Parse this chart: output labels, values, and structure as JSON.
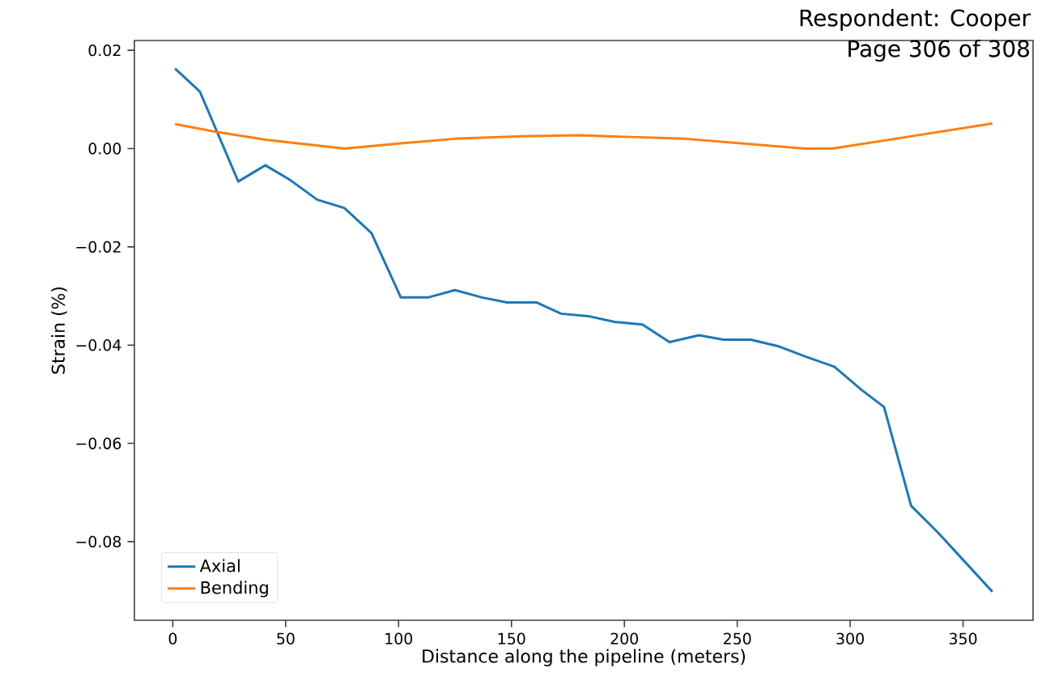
{
  "chart_data": {
    "type": "line",
    "xlabel": "Distance along the pipeline (meters)",
    "ylabel": "Strain (%)",
    "annotations": [
      "Respondent: Cooper",
      "Page 306 of 308"
    ],
    "xlim": [
      -17,
      381
    ],
    "xticks": [
      0,
      50,
      100,
      150,
      200,
      250,
      300,
      350
    ],
    "ylim": [
      -0.096,
      0.022
    ],
    "yticks": [
      {
        "value": -0.08,
        "label": "−0.08"
      },
      {
        "value": -0.06,
        "label": "−0.06"
      },
      {
        "value": -0.04,
        "label": "−0.04"
      },
      {
        "value": -0.02,
        "label": "−0.02"
      },
      {
        "value": 0.0,
        "label": "0.00"
      },
      {
        "value": 0.02,
        "label": "0.02"
      }
    ],
    "legend": "bottom left",
    "series": [
      {
        "name": "Axial",
        "color": "#1f77b4",
        "x": [
          1,
          12,
          29,
          41,
          52,
          64,
          76,
          88,
          101,
          113,
          125,
          137,
          148,
          161,
          172,
          184,
          196,
          208,
          220,
          233,
          244,
          256,
          268,
          280,
          293,
          305,
          315,
          327,
          339,
          350,
          363
        ],
        "values": [
          0.0163,
          0.0116,
          -0.0067,
          -0.0034,
          -0.0064,
          -0.0104,
          -0.0121,
          -0.0172,
          -0.0303,
          -0.0303,
          -0.0288,
          -0.0303,
          -0.0313,
          -0.0313,
          -0.0336,
          -0.0341,
          -0.0353,
          -0.0358,
          -0.0394,
          -0.038,
          -0.0389,
          -0.0389,
          -0.0402,
          -0.0423,
          -0.0444,
          -0.0491,
          -0.0526,
          -0.0727,
          -0.0782,
          -0.0837,
          -0.0902
        ]
      },
      {
        "name": "Bending",
        "color": "#ff7f0e",
        "x": [
          1,
          18,
          41,
          76,
          102,
          125,
          155,
          180,
          227,
          280,
          292,
          320,
          363
        ],
        "values": [
          0.005,
          0.0035,
          0.0018,
          0.0,
          0.0011,
          0.002,
          0.0025,
          0.0027,
          0.002,
          0.0,
          0.0,
          0.002,
          0.0051
        ]
      }
    ]
  }
}
